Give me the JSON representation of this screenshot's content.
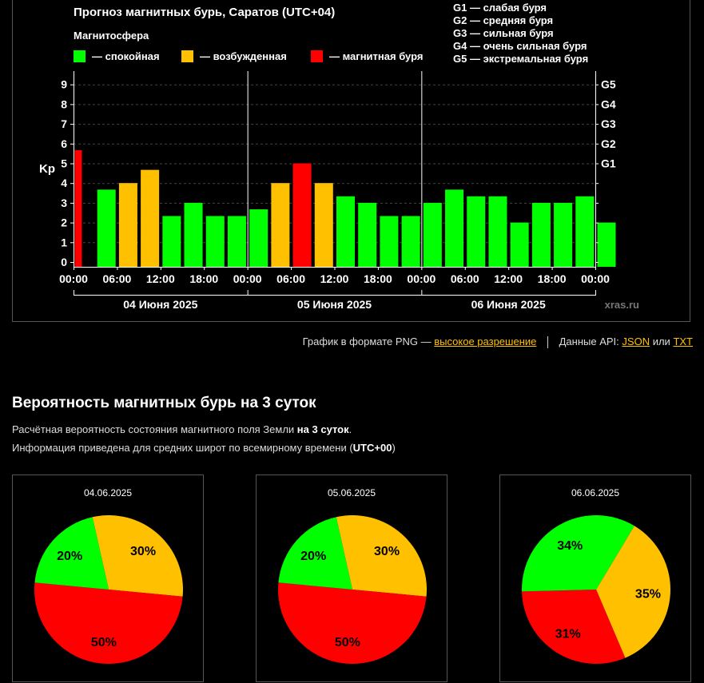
{
  "chart": {
    "title": "Прогноз магнитных бурь, Саратов (UTC+04)",
    "legend_title": "Магнитосфера",
    "legend": [
      {
        "label": "— спокойная",
        "color": "#00ff00"
      },
      {
        "label": "— возбужденная",
        "color": "#ffc000"
      },
      {
        "label": "— магнитная буря",
        "color": "#ff0000"
      }
    ],
    "g_legend": [
      "G1 — слабая буря",
      "G2 — средняя буря",
      "G3 — сильная буря",
      "G4 — очень сильная буря",
      "G5 — экстремальная буря"
    ],
    "ylabel": "Kp",
    "y_ticks": [
      "0",
      "1",
      "2",
      "3",
      "4",
      "5",
      "6",
      "7",
      "8",
      "9"
    ],
    "g_ticks": [
      {
        "label": "G1",
        "kp": 5
      },
      {
        "label": "G2",
        "kp": 6
      },
      {
        "label": "G3",
        "kp": 7
      },
      {
        "label": "G4",
        "kp": 8
      },
      {
        "label": "G5",
        "kp": 9
      }
    ],
    "x_ticks": [
      "00:00",
      "06:00",
      "12:00",
      "18:00",
      "00:00",
      "06:00",
      "12:00",
      "18:00",
      "00:00",
      "06:00",
      "12:00",
      "18:00",
      "00:00"
    ],
    "days": [
      "04 Июня 2025",
      "05 Июня 2025",
      "06 Июня 2025"
    ],
    "watermark": "xras.ru"
  },
  "chart_data": {
    "type": "bar",
    "title": "Прогноз магнитных бурь, Саратов (UTC+04)",
    "ylabel": "Kp",
    "ylim": [
      0,
      9
    ],
    "grid": true,
    "legend_position": "top",
    "start_time": "04 Июня 2025 00:00",
    "categories": [
      "00:00",
      "03:00",
      "06:00",
      "09:00",
      "12:00",
      "15:00",
      "18:00",
      "21:00",
      "00:00",
      "03:00",
      "06:00",
      "09:00",
      "12:00",
      "15:00",
      "18:00",
      "21:00",
      "00:00",
      "03:00",
      "06:00",
      "09:00",
      "12:00",
      "15:00",
      "18:00",
      "21:00",
      "00:00"
    ],
    "values": [
      5.67,
      3.67,
      4.0,
      4.67,
      2.33,
      3.0,
      2.33,
      2.33,
      2.67,
      4.0,
      5.0,
      4.0,
      3.33,
      3.0,
      2.33,
      2.33,
      3.0,
      3.67,
      3.33,
      3.33,
      2.0,
      3.0,
      3.0,
      3.33,
      2.0
    ],
    "colors": [
      "#ff0000",
      "#00ff00",
      "#ffc000",
      "#ffc000",
      "#00ff00",
      "#00ff00",
      "#00ff00",
      "#00ff00",
      "#00ff00",
      "#ffc000",
      "#ff0000",
      "#ffc000",
      "#00ff00",
      "#00ff00",
      "#00ff00",
      "#00ff00",
      "#00ff00",
      "#00ff00",
      "#00ff00",
      "#00ff00",
      "#00ff00",
      "#00ff00",
      "#00ff00",
      "#00ff00",
      "#00ff00"
    ]
  },
  "links": {
    "png_prefix": "График в формате PNG —",
    "png_link": "высокое разрешение",
    "api_prefix": "Данные API:",
    "json_link": "JSON",
    "or_text": "или",
    "txt_link": "TXT"
  },
  "probability": {
    "title": "Вероятность магнитных бурь на 3 суток",
    "line1_text": "Расчётная вероятность состояния магнитного поля Земли ",
    "line1_bold": "на 3 суток",
    "line1_end": ".",
    "line2_text": "Информация приведена для средних широт по всемирному времени (",
    "line2_bold": "UTC+00",
    "line2_end": ")",
    "pies": [
      {
        "date": "04.06.2025",
        "calm": 20,
        "excited": 30,
        "storm": 50,
        "labels": {
          "calm": "20%",
          "excited": "30%",
          "storm": "50%"
        }
      },
      {
        "date": "05.06.2025",
        "calm": 20,
        "excited": 30,
        "storm": 50,
        "labels": {
          "calm": "20%",
          "excited": "30%",
          "storm": "50%"
        }
      },
      {
        "date": "06.06.2025",
        "calm": 34,
        "excited": 35,
        "storm": 31,
        "labels": {
          "calm": "34%",
          "excited": "35%",
          "storm": "31%"
        }
      }
    ],
    "colors": {
      "calm": "#00ff00",
      "excited": "#ffc000",
      "storm": "#ff0000"
    }
  }
}
